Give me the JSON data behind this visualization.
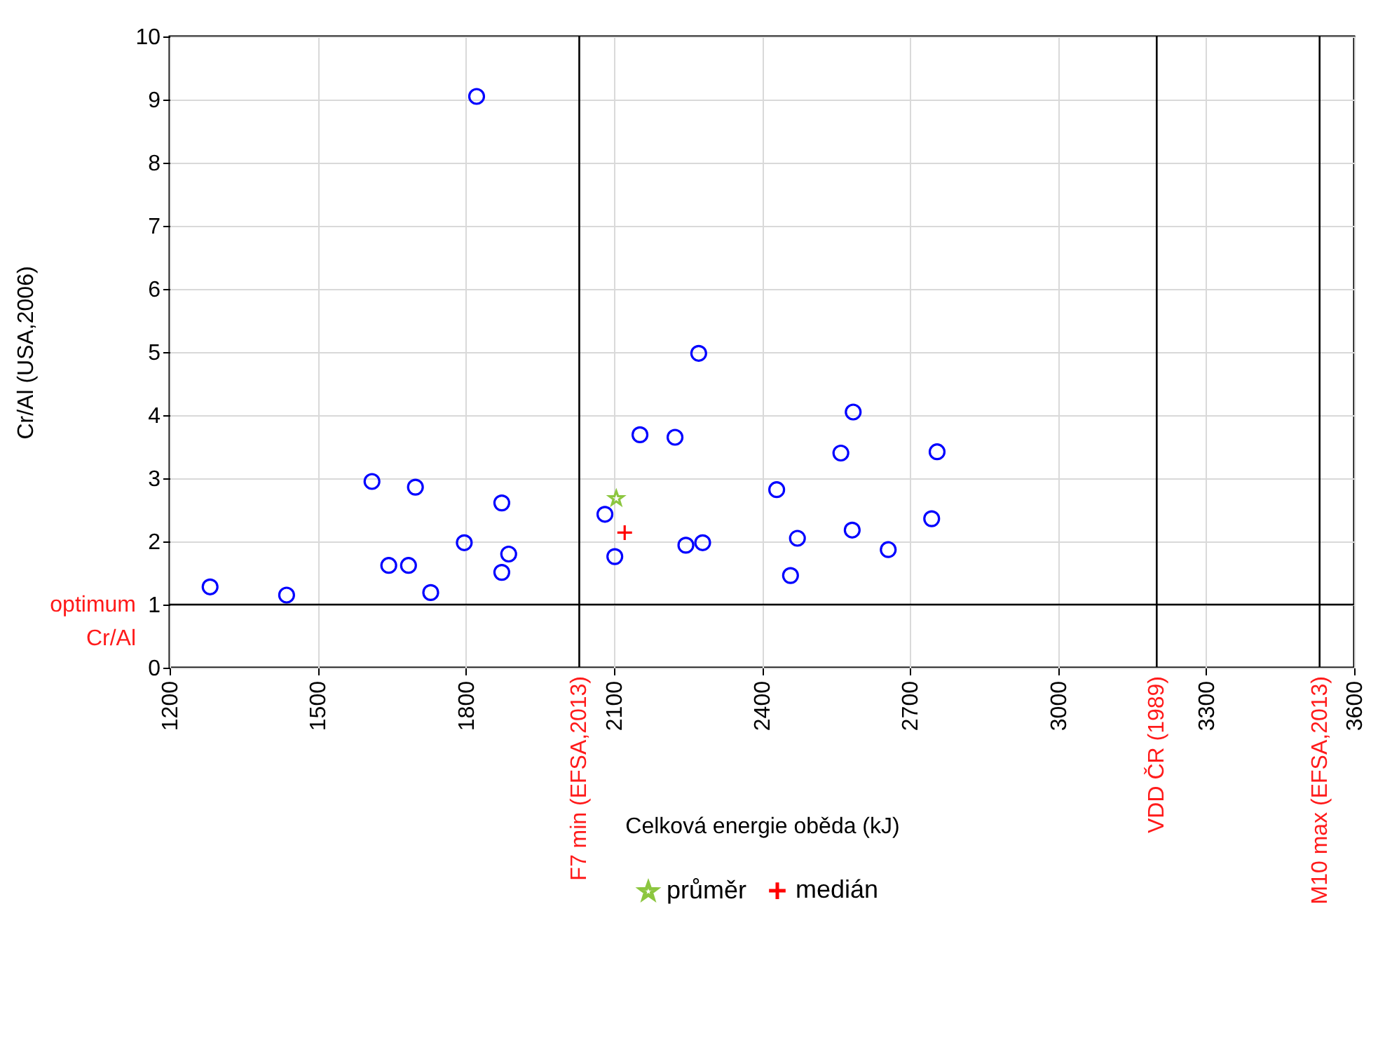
{
  "chart_data": {
    "type": "scatter",
    "xlabel": "Celková energie oběda (kJ)",
    "ylabel": "Cr/Al (USA,2006)",
    "xlim": [
      1200,
      3600
    ],
    "xticks": [
      1200,
      1500,
      1800,
      2100,
      2400,
      2700,
      3000,
      3300,
      3600
    ],
    "ylim": [
      0,
      10
    ],
    "yticks": [
      0,
      1,
      2,
      3,
      4,
      5,
      6,
      7,
      8,
      9,
      10
    ],
    "grid": true,
    "legend": "bottom",
    "series": [
      {
        "color": "#0000ff",
        "marker": "circle",
        "x": [
          1282,
          1437,
          1610,
          1644,
          1684,
          1698,
          1729,
          1797,
          1822,
          1873,
          1873,
          1887,
          2082,
          2102,
          2153,
          2224,
          2246,
          2272,
          2280,
          2430,
          2458,
          2472,
          2560,
          2583,
          2585,
          2656,
          2744,
          2755
        ],
        "values": [
          1.28,
          1.15,
          2.95,
          1.62,
          1.62,
          2.86,
          1.19,
          1.98,
          9.05,
          2.61,
          1.51,
          1.8,
          2.43,
          1.76,
          3.69,
          3.65,
          1.94,
          4.98,
          1.98,
          2.82,
          1.46,
          2.05,
          3.4,
          2.18,
          4.05,
          1.87,
          2.36,
          3.42
        ]
      },
      {
        "name": "průměr",
        "color": "#8cc63f",
        "marker": "star",
        "x": [
          2105
        ],
        "values": [
          2.68
        ]
      },
      {
        "name": "medián",
        "color": "#ff0000",
        "marker": "cross",
        "x": [
          2122
        ],
        "values": [
          2.14
        ]
      }
    ],
    "ref_lines": [
      {
        "axis": "x",
        "value": 2030,
        "label": "F7 min (EFSA,2013)",
        "color": "#000000"
      },
      {
        "axis": "x",
        "value": 3200,
        "label": "VDD ČR (1989)",
        "color": "#000000"
      },
      {
        "axis": "x",
        "value": 3530,
        "label": "M10 max (EFSA,2013)",
        "color": "#000000"
      },
      {
        "axis": "y",
        "value": 1,
        "label": "optimum Cr/Al",
        "color": "#000000"
      }
    ]
  }
}
